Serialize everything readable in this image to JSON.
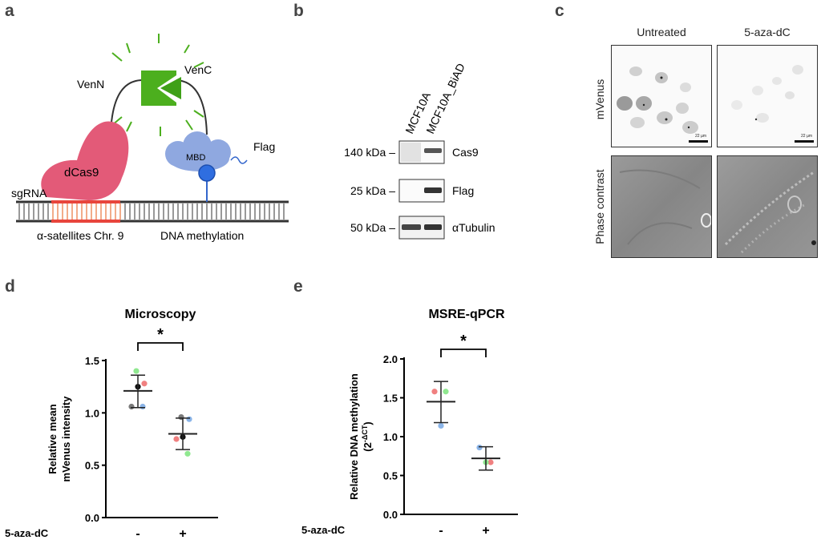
{
  "panels": {
    "a": {
      "letter": "a",
      "labels": {
        "venn": "VenN",
        "venc": "VenC",
        "dcas9": "dCas9",
        "mbd": "MBD",
        "flag": "Flag",
        "sgrna": "sgRNA",
        "satellites": "α-satellites Chr. 9",
        "methylation": "DNA methylation"
      }
    },
    "b": {
      "letter": "b",
      "lanes": [
        "MCF10A",
        "MCF10A_BiAD"
      ],
      "rows": [
        {
          "marker": "140 kDa –",
          "protein": "Cas9"
        },
        {
          "marker": "25 kDa –",
          "protein": "Flag"
        },
        {
          "marker": "50 kDa –",
          "protein": "αTubulin"
        }
      ]
    },
    "c": {
      "letter": "c",
      "columns": [
        "Untreated",
        "5-aza-dC"
      ],
      "rows": [
        "mVenus",
        "Phase contrast"
      ],
      "scalebar": "22 µm"
    },
    "d": {
      "letter": "d"
    },
    "e": {
      "letter": "e"
    }
  },
  "chart_data": [
    {
      "type": "scatter",
      "title": "Microscopy",
      "ylabel_line1": "Relative mean",
      "ylabel_line2": "mVenus intensity",
      "xlabel": "5-aza-dC",
      "categories": [
        "-",
        "+"
      ],
      "ylim": [
        0,
        1.5
      ],
      "yticks": [
        "0.0",
        "0.5",
        "1.0",
        "1.5"
      ],
      "significance": "*",
      "groups": [
        {
          "category": "-",
          "mean": 1.21,
          "sd_upper": 1.36,
          "sd_lower": 1.05,
          "points": [
            {
              "y": 1.4,
              "color": "#90e890"
            },
            {
              "y": 1.28,
              "color": "#f08080"
            },
            {
              "y": 1.25,
              "color": "#111111"
            },
            {
              "y": 1.06,
              "color": "#7a7a7a"
            },
            {
              "y": 1.06,
              "color": "#8ab4e8"
            }
          ]
        },
        {
          "category": "+",
          "mean": 0.8,
          "sd_upper": 0.95,
          "sd_lower": 0.65,
          "points": [
            {
              "y": 0.96,
              "color": "#7a7a7a"
            },
            {
              "y": 0.94,
              "color": "#8ab4e8"
            },
            {
              "y": 0.77,
              "color": "#111111"
            },
            {
              "y": 0.75,
              "color": "#f08080"
            },
            {
              "y": 0.61,
              "color": "#90e890"
            }
          ]
        }
      ]
    },
    {
      "type": "scatter",
      "title": "MSRE-qPCR",
      "ylabel_line1": "Relative DNA methylation",
      "ylabel_line2": "(2",
      "ylabel_sup": "-ΔCT",
      "ylabel_end": ")",
      "xlabel": "5-aza-dC",
      "categories": [
        "-",
        "+"
      ],
      "ylim": [
        0,
        2.0
      ],
      "yticks": [
        "0.0",
        "0.5",
        "1.0",
        "1.5",
        "2.0"
      ],
      "significance": "*",
      "groups": [
        {
          "category": "-",
          "mean": 1.45,
          "sd_upper": 1.71,
          "sd_lower": 1.18,
          "points": [
            {
              "y": 1.58,
              "color": "#f08080"
            },
            {
              "y": 1.58,
              "color": "#90e890"
            },
            {
              "y": 1.14,
              "color": "#8ab4e8"
            }
          ]
        },
        {
          "category": "+",
          "mean": 0.72,
          "sd_upper": 0.87,
          "sd_lower": 0.57,
          "points": [
            {
              "y": 0.86,
              "color": "#8ab4e8"
            },
            {
              "y": 0.67,
              "color": "#f08080"
            },
            {
              "y": 0.67,
              "color": "#90e890"
            }
          ]
        }
      ]
    }
  ]
}
